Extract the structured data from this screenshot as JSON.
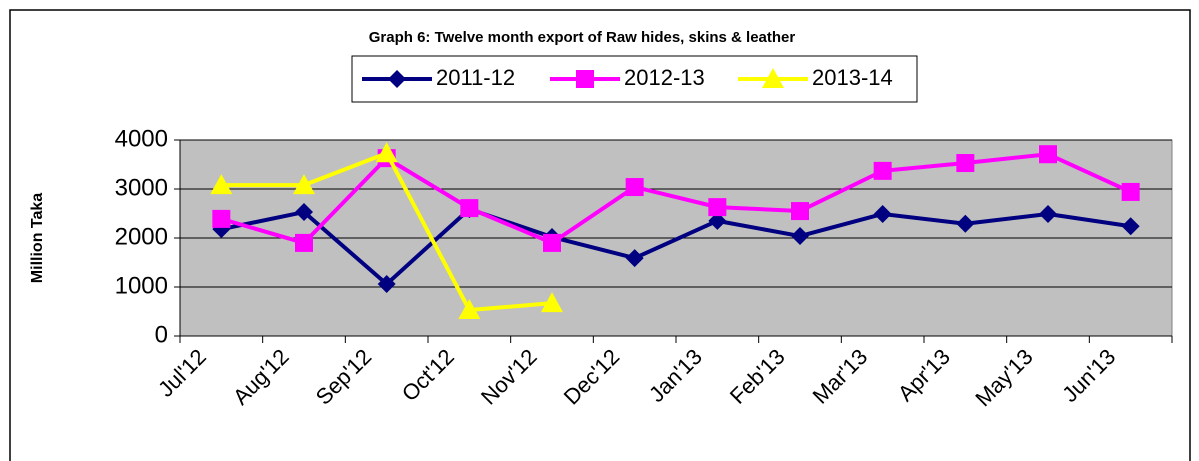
{
  "chart_data": {
    "type": "line",
    "title": "Graph 6: Twelve month export of Raw hides, skins & leather",
    "y_label": "Million Taka",
    "categories": [
      "Jul'12",
      "Aug'12",
      "Sep'12",
      "Oct'12",
      "Nov'12",
      "Dec'12",
      "Jan'13",
      "Feb'13",
      "Mar'13",
      "Apr'13",
      "May'13",
      "Jun'13"
    ],
    "series": [
      {
        "name": "2011-12",
        "color": "#000080",
        "marker": "diamond",
        "values": [
          2180,
          2530,
          1060,
          2590,
          2020,
          1590,
          2350,
          2040,
          2490,
          2290,
          2490,
          2240
        ]
      },
      {
        "name": "2012-13",
        "color": "#ff00ff",
        "marker": "square",
        "values": [
          2390,
          1900,
          3630,
          2610,
          1900,
          3040,
          2630,
          2550,
          3370,
          3530,
          3710,
          2940
        ]
      },
      {
        "name": "2013-14",
        "color": "#ffff00",
        "marker": "triangle",
        "values": [
          3080,
          3080,
          3730,
          530,
          670,
          null,
          null,
          null,
          null,
          null,
          null,
          null
        ]
      }
    ],
    "ylim": [
      0,
      4000
    ],
    "yticks": [
      0,
      1000,
      2000,
      3000,
      4000
    ],
    "grid": true,
    "legend": "top"
  }
}
